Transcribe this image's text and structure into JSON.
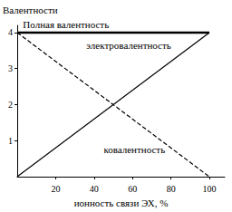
{
  "chart_data": {
    "type": "line",
    "y_label": "Валентности",
    "x_label": "ионность связи ЭХ, %",
    "x": [
      0,
      100
    ],
    "series": [
      {
        "name": "Полная валентность",
        "color": "#000000",
        "line_style": "solid",
        "values": [
          4,
          4
        ]
      },
      {
        "name": "электровалентность",
        "color": "#000000",
        "line_style": "solid",
        "values": [
          0,
          4
        ]
      },
      {
        "name": "ковалентность",
        "color": "#000000",
        "line_style": "dashed",
        "values": [
          4,
          0
        ]
      }
    ],
    "xlim": [
      0,
      108
    ],
    "xticks": [
      20,
      40,
      60,
      80,
      100
    ],
    "ylim": [
      0,
      4.2
    ],
    "yticks": [
      1,
      2,
      3,
      4
    ],
    "grid": false
  }
}
